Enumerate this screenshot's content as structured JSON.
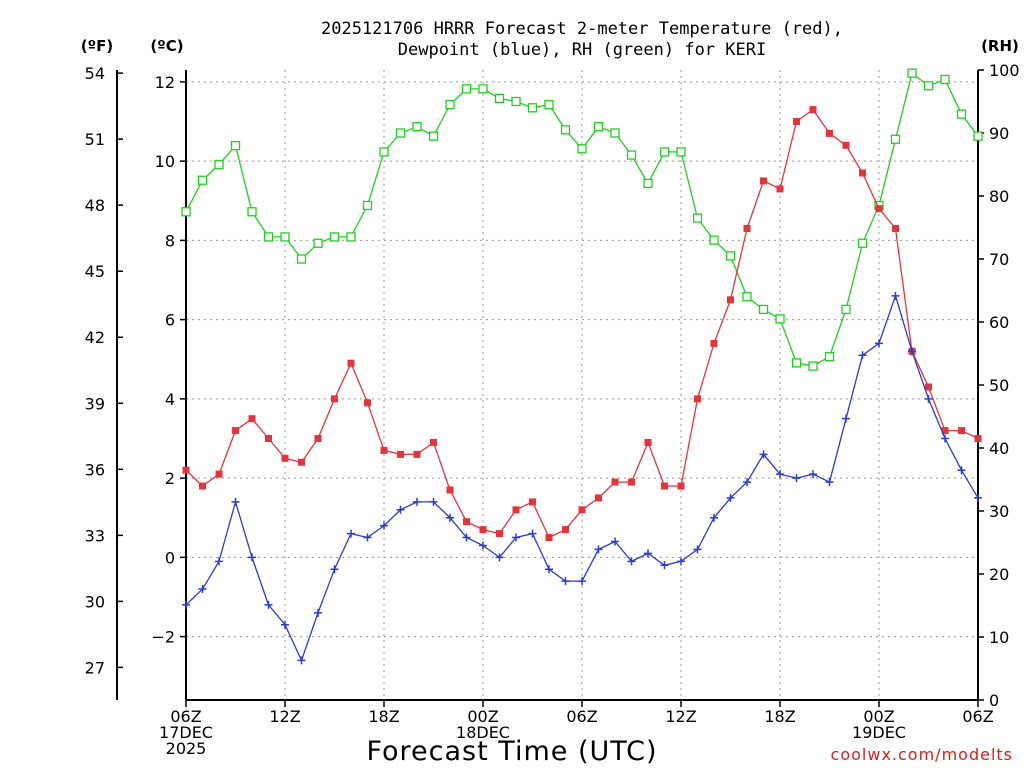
{
  "chart_data": {
    "type": "line",
    "title_line1": "2025121706 HRRR Forecast 2-meter Temperature (red),",
    "title_line2": "Dewpoint (blue), RH (green) for KERI",
    "xlabel": "Forecast Time (UTC)",
    "credit": "coolwx.com/modelts",
    "units": {
      "f": "(ºF)",
      "c": "(ºC)",
      "rh": "(RH)"
    },
    "x_range_hours": [
      0,
      48
    ],
    "x_ticks": [
      {
        "h": 0,
        "l1": "06Z",
        "l2": "17DEC",
        "l3": "2025"
      },
      {
        "h": 6,
        "l1": "12Z",
        "l2": "",
        "l3": ""
      },
      {
        "h": 12,
        "l1": "18Z",
        "l2": "",
        "l3": ""
      },
      {
        "h": 18,
        "l1": "00Z",
        "l2": "18DEC",
        "l3": ""
      },
      {
        "h": 24,
        "l1": "06Z",
        "l2": "",
        "l3": ""
      },
      {
        "h": 30,
        "l1": "12Z",
        "l2": "",
        "l3": ""
      },
      {
        "h": 36,
        "l1": "18Z",
        "l2": "",
        "l3": ""
      },
      {
        "h": 42,
        "l1": "00Z",
        "l2": "19DEC",
        "l3": ""
      },
      {
        "h": 48,
        "l1": "06Z",
        "l2": "",
        "l3": ""
      }
    ],
    "y_celsius": {
      "range": [
        -3.6,
        12.3
      ],
      "ticks": [
        -2,
        0,
        2,
        4,
        6,
        8,
        10,
        12
      ]
    },
    "y_fahrenheit": {
      "ticks": [
        27,
        30,
        33,
        36,
        39,
        42,
        45,
        48,
        51,
        54
      ]
    },
    "y_rh": {
      "range": [
        0,
        100
      ],
      "ticks": [
        0,
        10,
        20,
        30,
        40,
        50,
        60,
        70,
        80,
        90,
        100
      ]
    },
    "grid": true,
    "colors": {
      "temperature": "#e8333b",
      "dewpoint": "#2a3bd6",
      "rh": "#1ed11e"
    },
    "series": [
      {
        "name": "Temperature",
        "axis": "celsius",
        "marker": "filled-square",
        "values": [
          2.2,
          1.8,
          2.1,
          3.2,
          3.5,
          3.0,
          2.5,
          2.4,
          3.0,
          4.0,
          4.9,
          3.9,
          2.7,
          2.6,
          2.6,
          2.9,
          1.7,
          0.9,
          0.7,
          0.6,
          1.2,
          1.4,
          0.5,
          0.7,
          1.2,
          1.5,
          1.9,
          1.9,
          2.9,
          1.8,
          1.8,
          4.0,
          5.4,
          6.5,
          8.3,
          9.5,
          9.3,
          11.0,
          11.3,
          10.7,
          10.4,
          9.7,
          8.8,
          8.3,
          5.2,
          4.3,
          3.2,
          3.2,
          3.0
        ]
      },
      {
        "name": "Dewpoint",
        "axis": "celsius",
        "marker": "plus",
        "values": [
          -1.2,
          -0.8,
          -0.1,
          1.4,
          0.0,
          -1.2,
          -1.7,
          -2.6,
          -1.4,
          -0.3,
          0.6,
          0.5,
          0.8,
          1.2,
          1.4,
          1.4,
          1.0,
          0.5,
          0.3,
          0.0,
          0.5,
          0.6,
          -0.3,
          -0.6,
          -0.6,
          0.2,
          0.4,
          -0.1,
          0.1,
          -0.2,
          -0.1,
          0.2,
          1.0,
          1.5,
          1.9,
          2.6,
          2.1,
          2.0,
          2.1,
          1.9,
          3.5,
          5.1,
          5.4,
          6.6,
          5.2,
          4.0,
          3.0,
          2.2,
          1.5
        ]
      },
      {
        "name": "RH",
        "axis": "rh",
        "marker": "open-square",
        "values": [
          77.5,
          82.5,
          85,
          88,
          77.5,
          73.5,
          73.5,
          70,
          72.5,
          73.5,
          73.5,
          78.5,
          87,
          90,
          91,
          89.5,
          94.5,
          97,
          97,
          95.5,
          95,
          94,
          94.5,
          90.5,
          87.5,
          91,
          90,
          86.5,
          82,
          87,
          87,
          76.5,
          73,
          70.5,
          64,
          62,
          60.5,
          53.5,
          53,
          54.5,
          62,
          72.5,
          78.5,
          89,
          99.5,
          97.5,
          98.5,
          93,
          89.5
        ]
      }
    ]
  }
}
